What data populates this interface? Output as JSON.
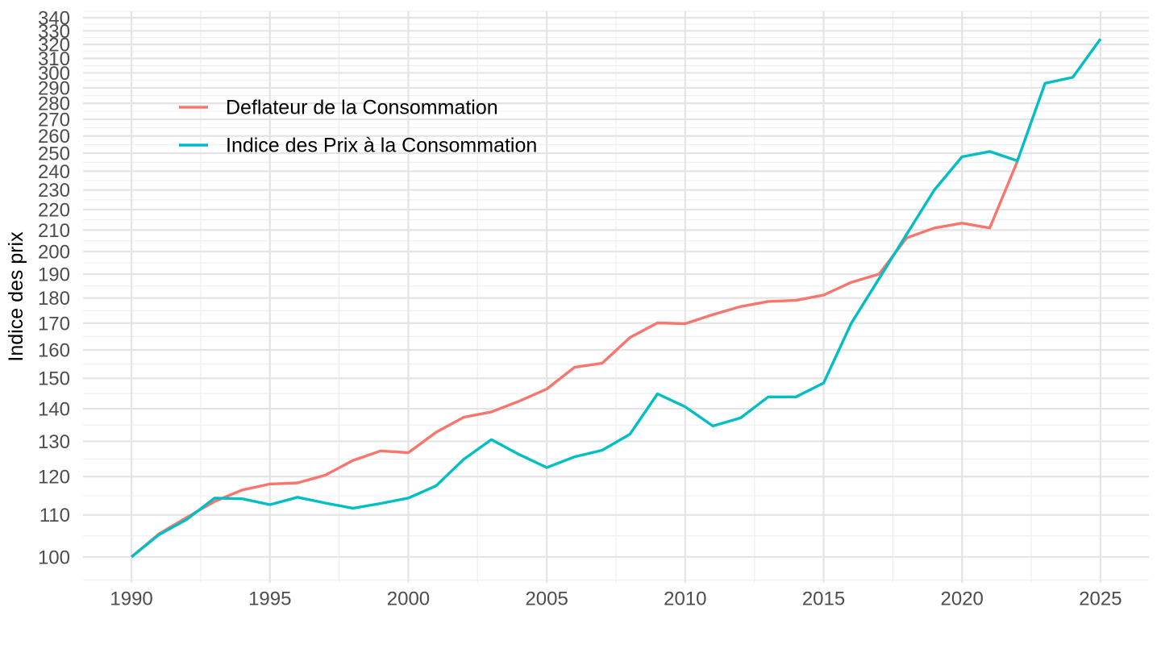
{
  "chart_data": {
    "type": "line",
    "title": "",
    "xlabel": "",
    "ylabel": "Indice des prix",
    "y_scale": "log10",
    "grid": "major+minor",
    "legend_position": "inside-top-left",
    "background_color": "#ffffff",
    "grid_major_color": "#e4e4e4",
    "grid_minor_color": "#efefef",
    "tick_label_color": "#4d4d4d",
    "x_ticks": [
      1990,
      1995,
      2000,
      2005,
      2010,
      2015,
      2020,
      2025
    ],
    "y_ticks": [
      100,
      110,
      120,
      130,
      140,
      150,
      160,
      170,
      180,
      190,
      200,
      210,
      220,
      230,
      240,
      250,
      260,
      270,
      280,
      290,
      300,
      310,
      320,
      330,
      340
    ],
    "x_range": [
      1988.25,
      2026.75
    ],
    "y_range": [
      94.3,
      344.9
    ],
    "x": [
      1990,
      1991,
      1992,
      1993,
      1994,
      1995,
      1996,
      1997,
      1998,
      1999,
      2000,
      2001,
      2002,
      2003,
      2004,
      2005,
      2006,
      2007,
      2008,
      2009,
      2010,
      2011,
      2012,
      2013,
      2014,
      2015,
      2016,
      2017,
      2018,
      2019,
      2020,
      2021,
      2022,
      2023,
      2024,
      2025
    ],
    "series": [
      {
        "name": "Deflateur de la Consommation",
        "color": "#F8766D",
        "values": [
          100,
          105.4,
          109.4,
          113.4,
          116.4,
          118,
          118.3,
          120.4,
          124.5,
          127.2,
          126.7,
          132.7,
          137.3,
          139,
          142.4,
          146.4,
          153.8,
          155.2,
          164.5,
          170.1,
          169.8,
          173.3,
          176.5,
          178.6,
          179,
          181.2,
          186.5,
          190,
          206.3,
          211,
          213.3,
          211,
          245.5,
          null,
          null,
          null
        ]
      },
      {
        "name": "Indice des Prix à la Consommation",
        "color": "#00BFC4",
        "values": [
          100,
          105.2,
          108.9,
          114.3,
          114.1,
          112.6,
          114.5,
          113,
          111.7,
          112.9,
          114.3,
          117.5,
          124.8,
          130.5,
          126.2,
          122.5,
          125.5,
          127.4,
          132.1,
          144.8,
          140.6,
          134.6,
          137.1,
          143.8,
          143.8,
          148.4,
          170,
          188,
          208,
          230,
          248,
          251,
          245.7,
          293,
          297,
          324
        ]
      }
    ]
  }
}
